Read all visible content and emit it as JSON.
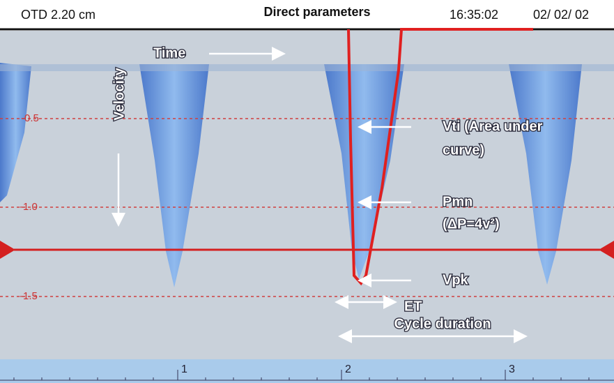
{
  "header": {
    "depth": "OTD 2.20 cm",
    "title": "Direct parameters",
    "time": "16:35:02",
    "date": "02/ 02/ 02"
  },
  "scale_labels": [
    "-0.5",
    "-1.0",
    "-1.5"
  ],
  "annotations": {
    "time": "Time",
    "velocity": "Velocity",
    "vti": [
      "Vti (Area under",
      "curve)"
    ],
    "pmn": [
      "Pmn",
      "(ΔP=4v²)"
    ],
    "vpk": "Vpk",
    "et": "ET",
    "cycle": "Cycle duration"
  },
  "beat_markers": [
    "1",
    "2",
    "3"
  ]
}
